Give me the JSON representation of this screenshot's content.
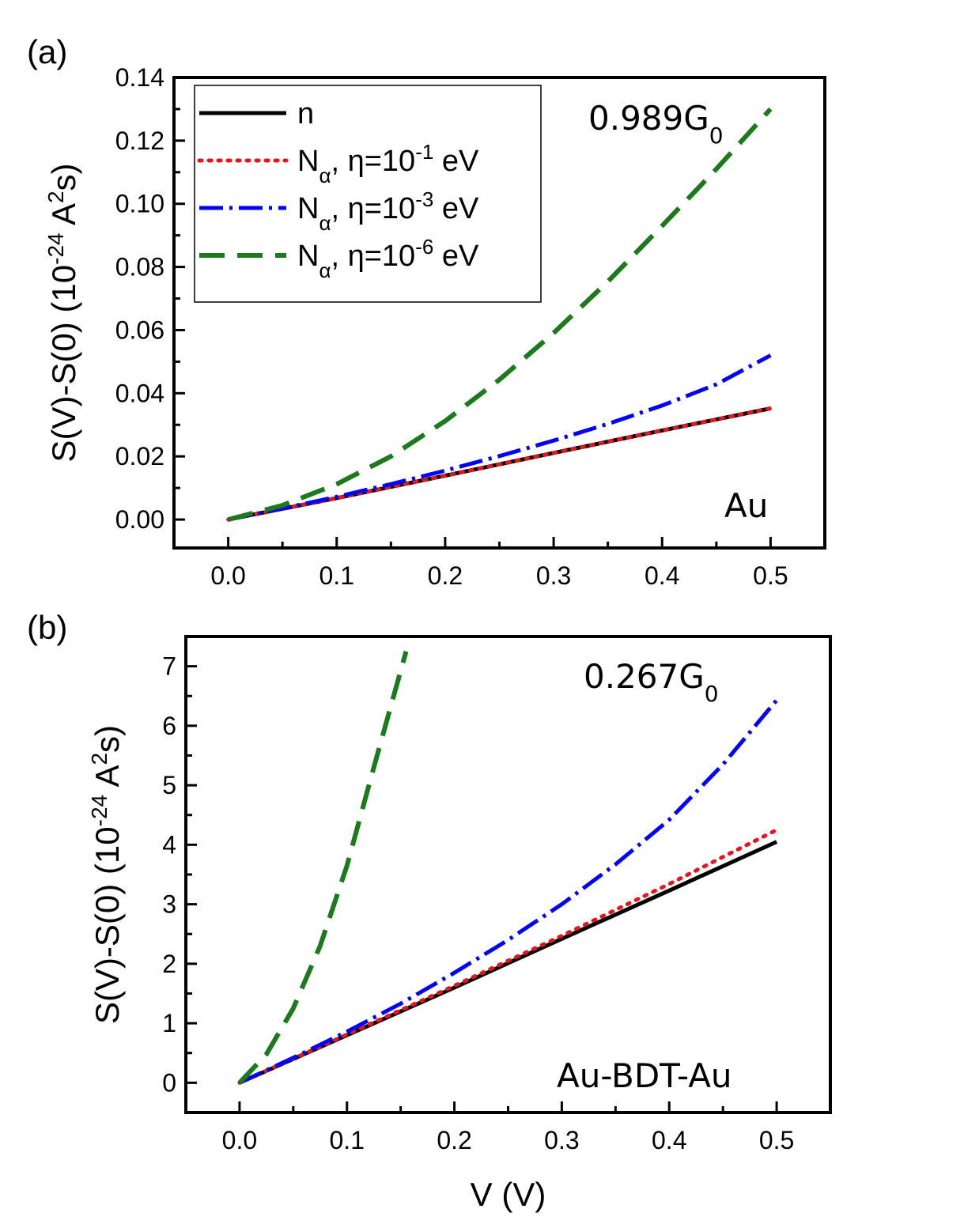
{
  "chart_data": [
    {
      "panel_label": "(a)",
      "type": "line",
      "ylabel_parts": {
        "a": "S(V)-S(0) (10",
        "b": "-24",
        "c": " A",
        "d": "2",
        "e": "s)"
      },
      "xlabel": "",
      "xlim": [
        -0.05,
        0.55
      ],
      "ylim": [
        -0.009,
        0.14
      ],
      "xticks": [
        0.0,
        0.1,
        0.2,
        0.3,
        0.4,
        0.5
      ],
      "xtick_labels": [
        "0.0",
        "0.1",
        "0.2",
        "0.3",
        "0.4",
        "0.5"
      ],
      "yticks": [
        0.0,
        0.02,
        0.04,
        0.06,
        0.08,
        0.1,
        0.12,
        0.14
      ],
      "ytick_labels": [
        "0.00",
        "0.02",
        "0.04",
        "0.06",
        "0.08",
        "0.10",
        "0.12",
        "0.14"
      ],
      "annotation_conductance": {
        "main": "0.989G",
        "sub": "0"
      },
      "annotation_material": "Au",
      "legend_position": "top-left",
      "series": [
        {
          "name": "n",
          "color": "#000000",
          "style": "solid",
          "x": [
            0.0,
            0.1,
            0.2,
            0.3,
            0.4,
            0.5
          ],
          "y": [
            0.0,
            0.0068,
            0.0139,
            0.0211,
            0.0282,
            0.0352
          ]
        },
        {
          "name": "Nα, η=10^-1 eV",
          "color": "#e8141b",
          "style": "dot",
          "x": [
            0.0,
            0.1,
            0.2,
            0.3,
            0.4,
            0.5
          ],
          "y": [
            0.0,
            0.0068,
            0.0139,
            0.0211,
            0.0282,
            0.0352
          ]
        },
        {
          "name": "Nα, η=10^-3 eV",
          "color": "#0000ff",
          "style": "dashdot",
          "x": [
            0.0,
            0.05,
            0.1,
            0.15,
            0.2,
            0.25,
            0.3,
            0.35,
            0.4,
            0.45,
            0.5
          ],
          "y": [
            0.0,
            0.0035,
            0.0072,
            0.0112,
            0.0155,
            0.0201,
            0.025,
            0.0303,
            0.0361,
            0.0428,
            0.052
          ]
        },
        {
          "name": "Nα, η=10^-6 eV",
          "color": "#1b7a1b",
          "style": "dash",
          "x": [
            0.0,
            0.05,
            0.1,
            0.15,
            0.2,
            0.25,
            0.3,
            0.35,
            0.4,
            0.45,
            0.5
          ],
          "y": [
            0.0,
            0.0045,
            0.0112,
            0.02,
            0.0312,
            0.0443,
            0.0591,
            0.0754,
            0.093,
            0.111,
            0.13
          ]
        }
      ],
      "legend": [
        {
          "main": "n"
        },
        {
          "main": "N",
          "sub": "α",
          "mid": ", η=10",
          "sup": "-1",
          "tail": " eV"
        },
        {
          "main": "N",
          "sub": "α",
          "mid": ", η=10",
          "sup": "-3",
          "tail": " eV"
        },
        {
          "main": "N",
          "sub": "α",
          "mid": ", η=10",
          "sup": "-6",
          "tail": " eV"
        }
      ]
    },
    {
      "panel_label": "(b)",
      "type": "line",
      "ylabel_parts": {
        "a": "S(V)-S(0) (10",
        "b": "-24",
        "c": " A",
        "d": "2",
        "e": "s)"
      },
      "xlabel": "V (V)",
      "xlim": [
        -0.05,
        0.55
      ],
      "ylim": [
        -0.5,
        7.5
      ],
      "xticks": [
        0.0,
        0.1,
        0.2,
        0.3,
        0.4,
        0.5
      ],
      "xtick_labels": [
        "0.0",
        "0.1",
        "0.2",
        "0.3",
        "0.4",
        "0.5"
      ],
      "yticks": [
        0,
        1,
        2,
        3,
        4,
        5,
        6,
        7
      ],
      "ytick_labels": [
        "0",
        "1",
        "2",
        "3",
        "4",
        "5",
        "6",
        "7"
      ],
      "annotation_conductance": {
        "main": "0.267G",
        "sub": "0"
      },
      "annotation_material": "Au-BDT-Au",
      "series": [
        {
          "name": "n",
          "color": "#000000",
          "style": "solid",
          "x": [
            0.0,
            0.1,
            0.2,
            0.3,
            0.4,
            0.5
          ],
          "y": [
            0.0,
            0.8,
            1.6,
            2.42,
            3.23,
            4.05
          ]
        },
        {
          "name": "Nα, η=10^-1 eV",
          "color": "#e8141b",
          "style": "dot",
          "x": [
            0.0,
            0.1,
            0.2,
            0.3,
            0.4,
            0.5
          ],
          "y": [
            0.0,
            0.81,
            1.63,
            2.47,
            3.34,
            4.25
          ]
        },
        {
          "name": "Nα, η=10^-3 eV",
          "color": "#0000ff",
          "style": "dashdot",
          "x": [
            0.0,
            0.05,
            0.1,
            0.15,
            0.2,
            0.25,
            0.3,
            0.35,
            0.4,
            0.45,
            0.5
          ],
          "y": [
            0.0,
            0.42,
            0.86,
            1.33,
            1.85,
            2.4,
            3.0,
            3.67,
            4.42,
            5.35,
            6.43
          ]
        },
        {
          "name": "Nα, η=10^-6 eV",
          "color": "#1b7a1b",
          "style": "dash",
          "x": [
            0.0,
            0.025,
            0.05,
            0.075,
            0.1,
            0.125,
            0.155
          ],
          "y": [
            0.0,
            0.48,
            1.25,
            2.3,
            3.65,
            5.3,
            7.25
          ]
        }
      ]
    }
  ]
}
